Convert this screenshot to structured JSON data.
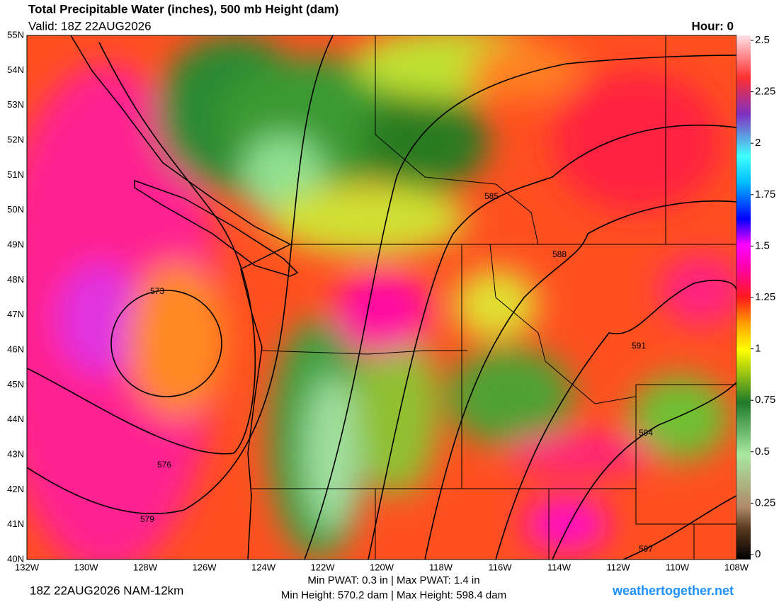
{
  "header": {
    "title": "Total Precipitable Water (inches), 500 mb Height (dam)",
    "valid": "Valid: 18Z 22AUG2026",
    "hour": "Hour: 0"
  },
  "map": {
    "lat_labels": [
      "55N",
      "54N",
      "53N",
      "52N",
      "51N",
      "50N",
      "49N",
      "48N",
      "47N",
      "46N",
      "45N",
      "44N",
      "43N",
      "42N",
      "41N",
      "40N"
    ],
    "lon_labels": [
      "132W",
      "130W",
      "128W",
      "126W",
      "124W",
      "122W",
      "120W",
      "118W",
      "116W",
      "114W",
      "112W",
      "110W",
      "108W"
    ],
    "contour_labels": [
      "573",
      "576",
      "579",
      "585",
      "588",
      "591",
      "594",
      "597"
    ]
  },
  "colorbar": {
    "lim": [
      0,
      2.5
    ],
    "ticks": [
      2.5,
      2.25,
      2,
      1.75,
      1.5,
      1.25,
      1,
      0.75,
      0.5,
      0.25,
      0
    ]
  },
  "footer": {
    "run": "18Z 22AUG2026 NAM-12km",
    "pwat": "Min PWAT:   0.3 in | Max PWAT:   1.4 in",
    "height": "Min Height: 570.2 dam | Max Height: 598.4 dam",
    "site": "weathertogether.net"
  }
}
